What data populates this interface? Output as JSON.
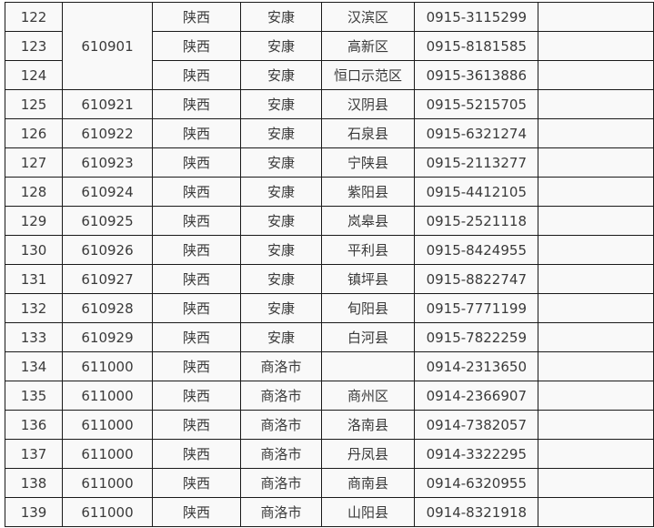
{
  "rows": [
    {
      "no": "122",
      "code": "610901",
      "province": "陕西",
      "city": "安康",
      "district": "汉滨区",
      "phone": "0915-3115299"
    },
    {
      "no": "123",
      "code": "",
      "province": "陕西",
      "city": "安康",
      "district": "高新区",
      "phone": "0915-8181585"
    },
    {
      "no": "124",
      "code": "",
      "province": "陕西",
      "city": "安康",
      "district": "恒口示范区",
      "phone": "0915-3613886"
    },
    {
      "no": "125",
      "code": "610921",
      "province": "陕西",
      "city": "安康",
      "district": "汉阴县",
      "phone": "0915-5215705"
    },
    {
      "no": "126",
      "code": "610922",
      "province": "陕西",
      "city": "安康",
      "district": "石泉县",
      "phone": "0915-6321274"
    },
    {
      "no": "127",
      "code": "610923",
      "province": "陕西",
      "city": "安康",
      "district": "宁陕县",
      "phone": "0915-2113277"
    },
    {
      "no": "128",
      "code": "610924",
      "province": "陕西",
      "city": "安康",
      "district": "紫阳县",
      "phone": "0915-4412105"
    },
    {
      "no": "129",
      "code": "610925",
      "province": "陕西",
      "city": "安康",
      "district": "岚皋县",
      "phone": "0915-2521118"
    },
    {
      "no": "130",
      "code": "610926",
      "province": "陕西",
      "city": "安康",
      "district": "平利县",
      "phone": "0915-8424955"
    },
    {
      "no": "131",
      "code": "610927",
      "province": "陕西",
      "city": "安康",
      "district": "镇坪县",
      "phone": "0915-8822747"
    },
    {
      "no": "132",
      "code": "610928",
      "province": "陕西",
      "city": "安康",
      "district": "旬阳县",
      "phone": "0915-7771199"
    },
    {
      "no": "133",
      "code": "610929",
      "province": "陕西",
      "city": "安康",
      "district": "白河县",
      "phone": "0915-7822259"
    },
    {
      "no": "134",
      "code": "611000",
      "province": "陕西",
      "city": "商洛市",
      "district": "",
      "phone": "0914-2313650"
    },
    {
      "no": "135",
      "code": "611000",
      "province": "陕西",
      "city": "商洛市",
      "district": "商州区",
      "phone": "0914-2366907"
    },
    {
      "no": "136",
      "code": "611000",
      "province": "陕西",
      "city": "商洛市",
      "district": "洛南县",
      "phone": "0914-7382057"
    },
    {
      "no": "137",
      "code": "611000",
      "province": "陕西",
      "city": "商洛市",
      "district": "丹凤县",
      "phone": "0914-3322295"
    },
    {
      "no": "138",
      "code": "611000",
      "province": "陕西",
      "city": "商洛市",
      "district": "商南县",
      "phone": "0914-6320955"
    },
    {
      "no": "139",
      "code": "611000",
      "province": "陕西",
      "city": "商洛市",
      "district": "山阳县",
      "phone": "0914-8321918"
    }
  ]
}
